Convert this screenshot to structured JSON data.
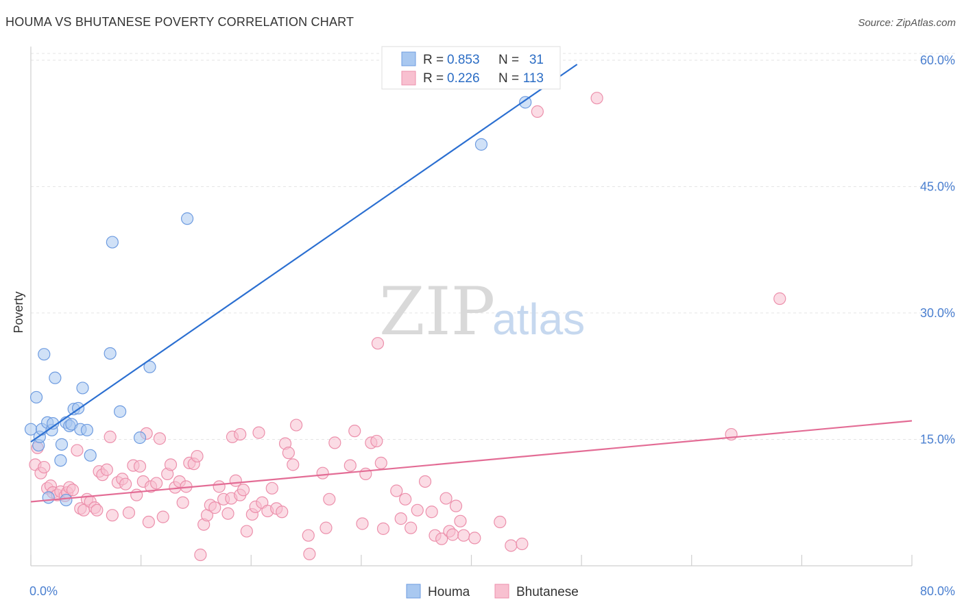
{
  "header": {
    "title": "HOUMA VS BHUTANESE POVERTY CORRELATION CHART",
    "source": "Source: ZipAtlas.com"
  },
  "watermark": {
    "zip": "ZIP",
    "atlas": "atlas"
  },
  "legend_top": [
    {
      "r_label": "R =",
      "r_value": "0.853",
      "n_label": "N =",
      "n_value": "31",
      "color": "#a9c8f0",
      "stroke": "#6d9be0"
    },
    {
      "r_label": "R =",
      "r_value": "0.226",
      "n_label": "N =",
      "n_value": "113",
      "color": "#f8c0d0",
      "stroke": "#ec8fab"
    }
  ],
  "legend_bottom": [
    {
      "label": "Houma",
      "color": "#a9c8f0",
      "stroke": "#6d9be0"
    },
    {
      "label": "Bhutanese",
      "color": "#f8c0d0",
      "stroke": "#ec8fab"
    }
  ],
  "chart_data": {
    "type": "scatter",
    "title": "HOUMA VS BHUTANESE POVERTY CORRELATION CHART",
    "xlabel": "",
    "ylabel": "Poverty",
    "xlim": [
      0,
      80
    ],
    "ylim": [
      0,
      60
    ],
    "x_tick_labels": [
      "0.0%",
      "80.0%"
    ],
    "y_ticks": [
      15,
      30,
      45,
      60
    ],
    "y_tick_labels": [
      "15.0%",
      "30.0%",
      "45.0%",
      "60.0%"
    ],
    "grid": "horizontal-dashed",
    "legend_placement": "top-center",
    "series": [
      {
        "name": "Houma",
        "color": "#a9c8f0",
        "stroke": "#6d9be0",
        "line_color": "#2b6fd1",
        "trend": {
          "x": [
            0,
            49.6
          ],
          "y": [
            14.7,
            59.5
          ]
        },
        "points": [
          [
            0.0,
            16.2
          ],
          [
            0.5,
            20.0
          ],
          [
            0.7,
            14.3
          ],
          [
            0.8,
            15.3
          ],
          [
            1.0,
            16.2
          ],
          [
            1.2,
            25.1
          ],
          [
            1.5,
            17.0
          ],
          [
            1.6,
            8.1
          ],
          [
            1.9,
            16.1
          ],
          [
            2.0,
            16.9
          ],
          [
            2.2,
            22.3
          ],
          [
            2.7,
            12.5
          ],
          [
            2.8,
            14.4
          ],
          [
            3.2,
            17.0
          ],
          [
            3.2,
            7.8
          ],
          [
            3.5,
            16.6
          ],
          [
            3.7,
            16.8
          ],
          [
            3.9,
            18.6
          ],
          [
            4.3,
            18.7
          ],
          [
            4.5,
            16.2
          ],
          [
            4.7,
            21.1
          ],
          [
            5.1,
            16.1
          ],
          [
            5.4,
            13.1
          ],
          [
            7.2,
            25.2
          ],
          [
            7.4,
            38.4
          ],
          [
            8.1,
            18.3
          ],
          [
            9.9,
            15.2
          ],
          [
            10.8,
            23.6
          ],
          [
            14.2,
            41.2
          ],
          [
            40.9,
            50.0
          ],
          [
            44.9,
            55.0
          ]
        ]
      },
      {
        "name": "Bhutanese",
        "color": "#f8c0d0",
        "stroke": "#ec8fab",
        "line_color": "#e36c95",
        "trend": {
          "x": [
            0,
            80
          ],
          "y": [
            7.6,
            17.2
          ]
        },
        "points": [
          [
            0.4,
            12.0
          ],
          [
            0.6,
            14.0
          ],
          [
            0.9,
            11.0
          ],
          [
            1.2,
            11.7
          ],
          [
            1.5,
            9.2
          ],
          [
            1.8,
            9.5
          ],
          [
            2.0,
            8.7
          ],
          [
            2.4,
            8.4
          ],
          [
            2.7,
            8.8
          ],
          [
            3.1,
            8.3
          ],
          [
            3.3,
            8.7
          ],
          [
            3.5,
            9.3
          ],
          [
            3.8,
            9.0
          ],
          [
            4.2,
            13.7
          ],
          [
            4.5,
            6.8
          ],
          [
            4.8,
            6.6
          ],
          [
            5.1,
            7.9
          ],
          [
            5.4,
            7.6
          ],
          [
            5.8,
            6.9
          ],
          [
            6.0,
            6.6
          ],
          [
            6.2,
            11.2
          ],
          [
            6.5,
            10.8
          ],
          [
            6.9,
            11.4
          ],
          [
            7.2,
            15.3
          ],
          [
            7.4,
            6.0
          ],
          [
            7.9,
            9.9
          ],
          [
            8.3,
            10.3
          ],
          [
            8.6,
            9.7
          ],
          [
            8.9,
            6.3
          ],
          [
            9.3,
            11.9
          ],
          [
            9.6,
            8.4
          ],
          [
            9.9,
            11.8
          ],
          [
            10.2,
            10.0
          ],
          [
            10.5,
            15.7
          ],
          [
            10.9,
            9.4
          ],
          [
            10.7,
            5.2
          ],
          [
            11.4,
            9.8
          ],
          [
            11.7,
            15.1
          ],
          [
            12.0,
            5.8
          ],
          [
            12.4,
            10.9
          ],
          [
            12.7,
            12.0
          ],
          [
            13.1,
            9.3
          ],
          [
            13.5,
            10.0
          ],
          [
            13.8,
            7.5
          ],
          [
            14.1,
            9.4
          ],
          [
            14.4,
            12.2
          ],
          [
            14.8,
            12.1
          ],
          [
            15.1,
            13.0
          ],
          [
            15.4,
            1.3
          ],
          [
            15.7,
            4.9
          ],
          [
            16.0,
            6.0
          ],
          [
            16.3,
            7.2
          ],
          [
            16.7,
            6.9
          ],
          [
            17.1,
            9.4
          ],
          [
            17.5,
            7.9
          ],
          [
            17.9,
            6.2
          ],
          [
            18.2,
            8.0
          ],
          [
            18.6,
            10.1
          ],
          [
            19.0,
            8.4
          ],
          [
            19.3,
            9.0
          ],
          [
            19.6,
            4.1
          ],
          [
            18.3,
            15.3
          ],
          [
            19.0,
            15.6
          ],
          [
            20.1,
            6.1
          ],
          [
            20.4,
            7.0
          ],
          [
            20.7,
            15.8
          ],
          [
            21.0,
            7.5
          ],
          [
            21.5,
            6.5
          ],
          [
            21.9,
            9.2
          ],
          [
            22.3,
            6.8
          ],
          [
            22.8,
            6.4
          ],
          [
            23.1,
            14.5
          ],
          [
            23.4,
            13.4
          ],
          [
            23.8,
            12.0
          ],
          [
            24.1,
            16.7
          ],
          [
            25.2,
            3.6
          ],
          [
            25.3,
            1.4
          ],
          [
            26.5,
            11.0
          ],
          [
            26.8,
            4.5
          ],
          [
            27.1,
            7.9
          ],
          [
            27.6,
            14.6
          ],
          [
            29.0,
            11.9
          ],
          [
            29.4,
            16.0
          ],
          [
            30.1,
            5.0
          ],
          [
            30.4,
            10.9
          ],
          [
            30.9,
            14.6
          ],
          [
            31.4,
            14.8
          ],
          [
            31.8,
            12.2
          ],
          [
            32.0,
            4.4
          ],
          [
            31.5,
            26.4
          ],
          [
            33.2,
            8.9
          ],
          [
            33.6,
            5.6
          ],
          [
            34.0,
            7.9
          ],
          [
            34.5,
            4.5
          ],
          [
            35.1,
            6.6
          ],
          [
            35.8,
            10.0
          ],
          [
            36.4,
            6.4
          ],
          [
            36.7,
            3.6
          ],
          [
            37.3,
            3.2
          ],
          [
            37.7,
            8.0
          ],
          [
            38.0,
            4.1
          ],
          [
            38.3,
            3.7
          ],
          [
            38.6,
            7.1
          ],
          [
            39.0,
            5.3
          ],
          [
            39.3,
            3.6
          ],
          [
            40.3,
            3.3
          ],
          [
            42.6,
            5.2
          ],
          [
            43.6,
            2.4
          ],
          [
            44.6,
            2.6
          ],
          [
            46.0,
            53.9
          ],
          [
            51.4,
            55.5
          ],
          [
            63.6,
            15.6
          ],
          [
            68.0,
            31.7
          ]
        ]
      }
    ]
  }
}
